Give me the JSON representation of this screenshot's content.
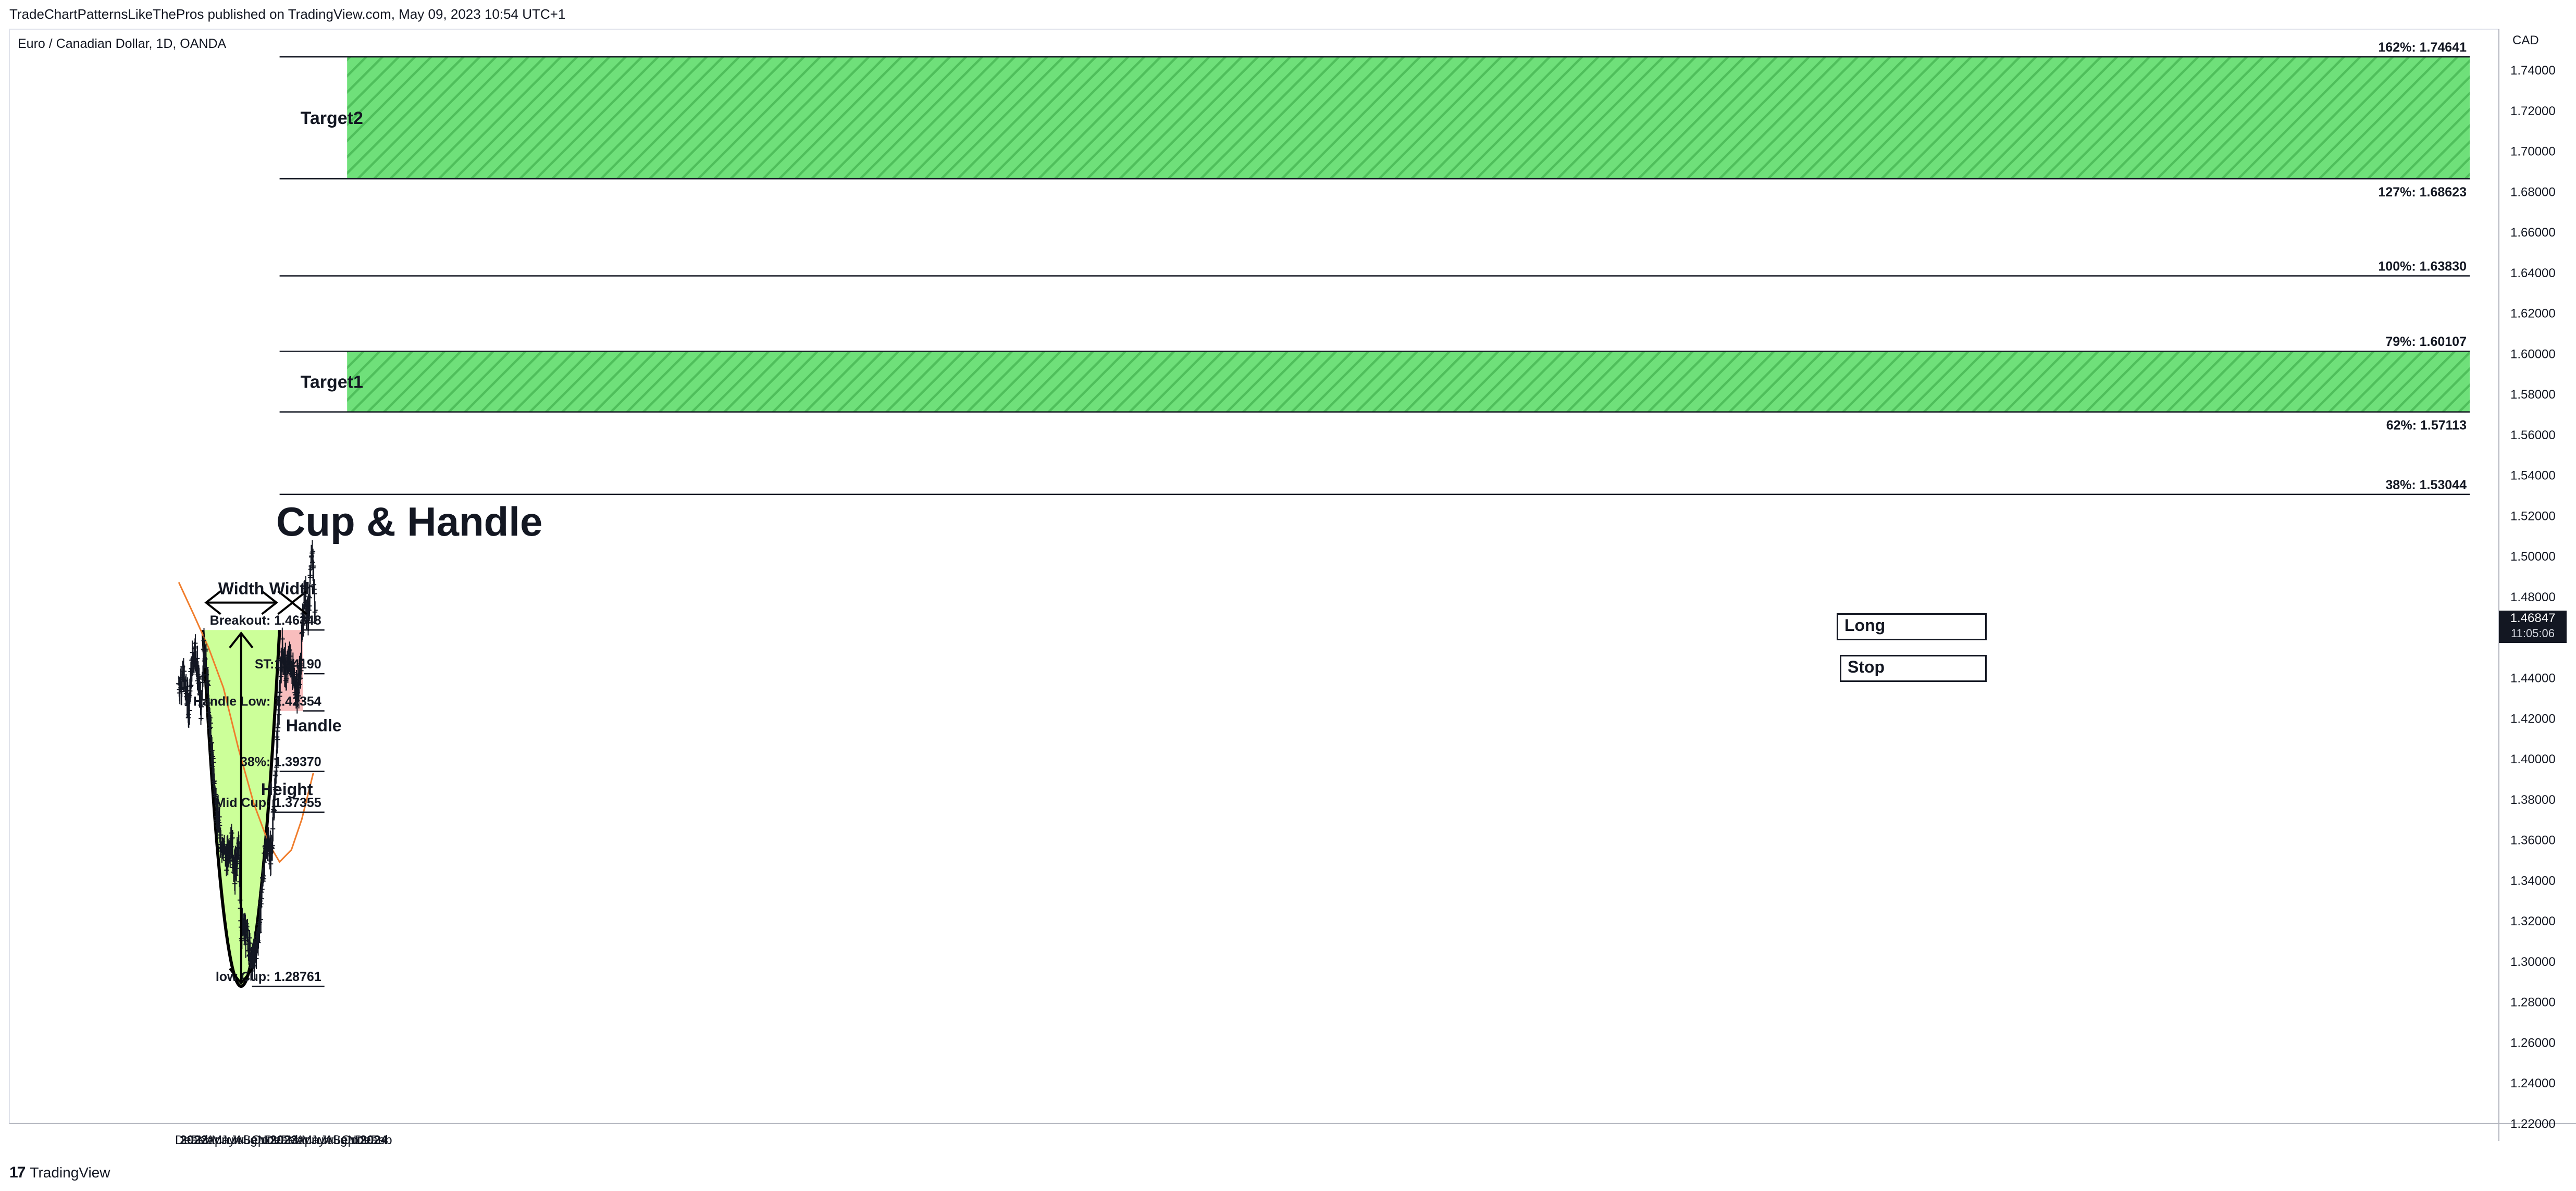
{
  "header": {
    "published": "TradeChartPatternsLikeThePros published on TradingView.com, May 09, 2023 10:54 UTC+1",
    "symbol": "Euro / Canadian Dollar, 1D, OANDA",
    "currency": "CAD"
  },
  "footer": {
    "brand": "TradingView",
    "logo_glyph": "17"
  },
  "price_tag": {
    "price": "1.46847",
    "countdown": "11:05:06"
  },
  "colors": {
    "cup_fill": "#ccff99",
    "handle_fill": "#f7b1b1",
    "target_fill": "#6fe07a",
    "ma_line": "#f07d2c",
    "bars": "#131722"
  },
  "chart_data": {
    "type": "line",
    "title": "Cup & Handle",
    "xlabel": "",
    "ylabel": "",
    "ylim": [
      1.215,
      1.75
    ],
    "y_ticks": [
      "1.74000",
      "1.72000",
      "1.70000",
      "1.68000",
      "1.66000",
      "1.64000",
      "1.62000",
      "1.60000",
      "1.58000",
      "1.56000",
      "1.54000",
      "1.52000",
      "1.50000",
      "1.48000",
      "1.46000",
      "1.44000",
      "1.42000",
      "1.40000",
      "1.38000",
      "1.36000",
      "1.34000",
      "1.32000",
      "1.30000",
      "1.28000",
      "1.26000",
      "1.24000",
      "1.22000"
    ],
    "x_ticks": [
      {
        "label": "Dec",
        "date": "2021-12-01",
        "bold": false
      },
      {
        "label": "2022",
        "date": "2022-01-01",
        "bold": true
      },
      {
        "label": "Feb",
        "date": "2022-02-01",
        "bold": false
      },
      {
        "label": "Mar",
        "date": "2022-03-01",
        "bold": false
      },
      {
        "label": "Apr",
        "date": "2022-04-01",
        "bold": false
      },
      {
        "label": "May",
        "date": "2022-05-01",
        "bold": false
      },
      {
        "label": "Jun",
        "date": "2022-06-01",
        "bold": false
      },
      {
        "label": "Jul",
        "date": "2022-07-01",
        "bold": false
      },
      {
        "label": "Aug",
        "date": "2022-08-01",
        "bold": false
      },
      {
        "label": "Sep",
        "date": "2022-09-01",
        "bold": false
      },
      {
        "label": "Oct",
        "date": "2022-10-01",
        "bold": false
      },
      {
        "label": "Nov",
        "date": "2022-11-01",
        "bold": false
      },
      {
        "label": "Dec",
        "date": "2022-12-01",
        "bold": false
      },
      {
        "label": "2023",
        "date": "2023-01-01",
        "bold": true
      },
      {
        "label": "Feb",
        "date": "2023-02-01",
        "bold": false
      },
      {
        "label": "Mar",
        "date": "2023-03-01",
        "bold": false
      },
      {
        "label": "Apr",
        "date": "2023-04-01",
        "bold": false
      },
      {
        "label": "May",
        "date": "2023-05-01",
        "bold": false
      },
      {
        "label": "Jun",
        "date": "2023-06-01",
        "bold": false
      },
      {
        "label": "Jul",
        "date": "2023-07-01",
        "bold": false
      },
      {
        "label": "Aug",
        "date": "2023-08-01",
        "bold": false
      },
      {
        "label": "Sep",
        "date": "2023-09-01",
        "bold": false
      },
      {
        "label": "Oct",
        "date": "2023-10-01",
        "bold": false
      },
      {
        "label": "Nov",
        "date": "2023-11-01",
        "bold": false
      },
      {
        "label": "Dec",
        "date": "2023-12-01",
        "bold": false
      },
      {
        "label": "2024",
        "date": "2024-01-01",
        "bold": true
      },
      {
        "label": "Feb",
        "date": "2024-02-01",
        "bold": false
      }
    ],
    "price_path": [
      {
        "date": "2021-11-01",
        "value": 1.437
      },
      {
        "date": "2021-11-20",
        "value": 1.44
      },
      {
        "date": "2021-12-10",
        "value": 1.425
      },
      {
        "date": "2021-12-25",
        "value": 1.448
      },
      {
        "date": "2022-01-05",
        "value": 1.455
      },
      {
        "date": "2022-01-20",
        "value": 1.438
      },
      {
        "date": "2022-02-01",
        "value": 1.422
      },
      {
        "date": "2022-02-10",
        "value": 1.455
      },
      {
        "date": "2022-02-20",
        "value": 1.448
      },
      {
        "date": "2022-03-05",
        "value": 1.42
      },
      {
        "date": "2022-03-20",
        "value": 1.395
      },
      {
        "date": "2022-04-05",
        "value": 1.372
      },
      {
        "date": "2022-04-25",
        "value": 1.358
      },
      {
        "date": "2022-05-15",
        "value": 1.35
      },
      {
        "date": "2022-06-01",
        "value": 1.362
      },
      {
        "date": "2022-06-15",
        "value": 1.342
      },
      {
        "date": "2022-07-01",
        "value": 1.356
      },
      {
        "date": "2022-07-12",
        "value": 1.315
      },
      {
        "date": "2022-07-25",
        "value": 1.315
      },
      {
        "date": "2022-08-10",
        "value": 1.31
      },
      {
        "date": "2022-08-25",
        "value": 1.3
      },
      {
        "date": "2022-09-10",
        "value": 1.305
      },
      {
        "date": "2022-09-25",
        "value": 1.32
      },
      {
        "date": "2022-10-10",
        "value": 1.345
      },
      {
        "date": "2022-10-25",
        "value": 1.36
      },
      {
        "date": "2022-11-10",
        "value": 1.352
      },
      {
        "date": "2022-11-25",
        "value": 1.382
      },
      {
        "date": "2022-12-10",
        "value": 1.422
      },
      {
        "date": "2022-12-25",
        "value": 1.455
      },
      {
        "date": "2023-01-10",
        "value": 1.442
      },
      {
        "date": "2023-01-25",
        "value": 1.45
      },
      {
        "date": "2023-02-10",
        "value": 1.44
      },
      {
        "date": "2023-02-25",
        "value": 1.432
      },
      {
        "date": "2023-03-10",
        "value": 1.445
      },
      {
        "date": "2023-03-25",
        "value": 1.482
      },
      {
        "date": "2023-04-10",
        "value": 1.472
      },
      {
        "date": "2023-04-20",
        "value": 1.49
      },
      {
        "date": "2023-04-28",
        "value": 1.502
      },
      {
        "date": "2023-05-05",
        "value": 1.48
      },
      {
        "date": "2023-05-09",
        "value": 1.468
      }
    ],
    "moving_average": [
      {
        "date": "2021-11-01",
        "value": 1.487
      },
      {
        "date": "2022-01-01",
        "value": 1.471
      },
      {
        "date": "2022-03-01",
        "value": 1.455
      },
      {
        "date": "2022-05-01",
        "value": 1.435
      },
      {
        "date": "2022-07-01",
        "value": 1.405
      },
      {
        "date": "2022-09-01",
        "value": 1.378
      },
      {
        "date": "2022-11-01",
        "value": 1.358
      },
      {
        "date": "2022-12-15",
        "value": 1.349
      },
      {
        "date": "2023-02-01",
        "value": 1.355
      },
      {
        "date": "2023-03-15",
        "value": 1.37
      },
      {
        "date": "2023-05-01",
        "value": 1.393
      }
    ],
    "cup": {
      "start": {
        "date": "2022-02-07",
        "value": 1.46348
      },
      "bottom": {
        "date": "2022-07-12",
        "value": 1.28761
      },
      "end": {
        "date": "2022-12-15",
        "value": 1.46348
      }
    },
    "handle_zone": {
      "start": "2022-12-15",
      "end": "2023-03-20",
      "top": 1.46348,
      "bottom": 1.42354
    },
    "levels": [
      {
        "label": "162%: 1.74641",
        "value": 1.74641,
        "start": "2022-12-15"
      },
      {
        "label": "127%: 1.68623",
        "value": 1.68623,
        "start": "2022-12-15"
      },
      {
        "label": "100%: 1.63830",
        "value": 1.6383,
        "start": "2022-12-15"
      },
      {
        "label": "79%: 1.60107",
        "value": 1.60107,
        "start": "2022-12-15"
      },
      {
        "label": "62%: 1.57113",
        "value": 1.57113,
        "start": "2022-12-15"
      },
      {
        "label": "38%: 1.53044",
        "value": 1.53044,
        "start": "2022-12-15"
      },
      {
        "label": "Breakout: 1.46348",
        "value": 1.46348,
        "start": "2023-03-25"
      },
      {
        "label": "ST:1.44190",
        "value": 1.4419,
        "start": "2023-03-25"
      },
      {
        "label": "Handle Low: 1.42354",
        "value": 1.42354,
        "start": "2023-03-20"
      },
      {
        "label": "38%: 1.39370",
        "value": 1.3937,
        "start": "2022-12-15"
      },
      {
        "label": "Mid Cup: 1.37355",
        "value": 1.37355,
        "start": "2022-11-20"
      },
      {
        "label": "low Cup: 1.28761",
        "value": 1.28761,
        "start": "2022-08-25"
      }
    ],
    "target_zones": [
      {
        "label": "Target2",
        "from": 1.68623,
        "to": 1.74641,
        "fill_start": "2023-09-15"
      },
      {
        "label": "Target1",
        "from": 1.57113,
        "to": 1.60107,
        "fill_start": "2023-09-15"
      }
    ],
    "annotations": {
      "width_cup": "Width",
      "width_handle": "Width",
      "height": "Height",
      "handle": "Handle"
    },
    "boxes": {
      "long": "Long",
      "stop": "Stop"
    },
    "grid": false
  }
}
